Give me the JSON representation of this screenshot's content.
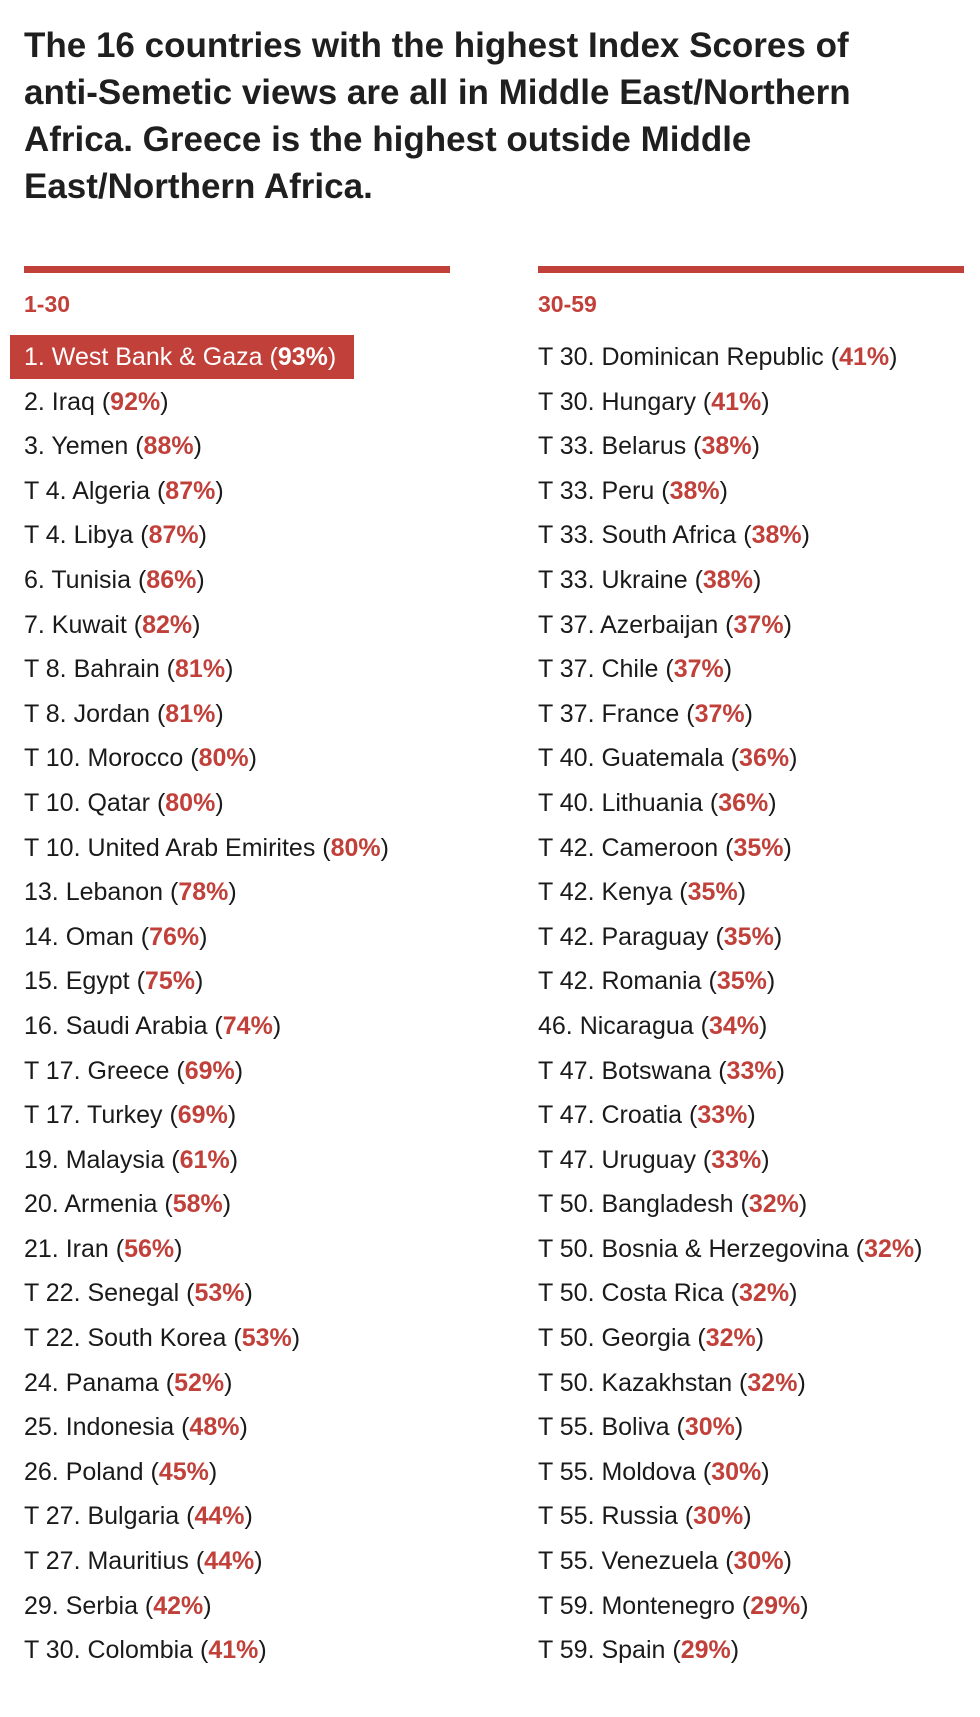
{
  "title": "The 16 countries with the highest Index Scores of anti-Semetic views are all in Middle East/Northern Africa. Greece is the highest outside Middle East/Northern Africa.",
  "colors": {
    "accent": "#c1403a",
    "text": "#1a1a1a",
    "background": "#ffffff"
  },
  "columns": [
    {
      "heading": "1-30",
      "items": [
        {
          "rank": "1. ",
          "country": "West Bank & Gaza",
          "pct": "93%",
          "highlight": true
        },
        {
          "rank": "2. ",
          "country": "Iraq",
          "pct": "92%"
        },
        {
          "rank": "3. ",
          "country": "Yemen",
          "pct": "88%"
        },
        {
          "rank": "T 4. ",
          "country": "Algeria",
          "pct": "87%"
        },
        {
          "rank": "T 4. ",
          "country": "Libya",
          "pct": "87%"
        },
        {
          "rank": "6. ",
          "country": "Tunisia",
          "pct": "86%"
        },
        {
          "rank": "7. ",
          "country": "Kuwait",
          "pct": "82%"
        },
        {
          "rank": "T 8. ",
          "country": "Bahrain",
          "pct": "81%"
        },
        {
          "rank": "T 8. ",
          "country": "Jordan",
          "pct": "81%"
        },
        {
          "rank": "T 10. ",
          "country": "Morocco",
          "pct": "80%"
        },
        {
          "rank": "T 10. ",
          "country": "Qatar",
          "pct": "80%"
        },
        {
          "rank": "T 10. ",
          "country": "United Arab Emirites",
          "pct": "80%"
        },
        {
          "rank": "13. ",
          "country": "Lebanon",
          "pct": "78%"
        },
        {
          "rank": "14. ",
          "country": "Oman",
          "pct": "76%"
        },
        {
          "rank": "15. ",
          "country": "Egypt",
          "pct": "75%"
        },
        {
          "rank": "16. ",
          "country": "Saudi Arabia",
          "pct": "74%"
        },
        {
          "rank": "T 17. ",
          "country": "Greece",
          "pct": "69%"
        },
        {
          "rank": "T 17. ",
          "country": "Turkey",
          "pct": "69%"
        },
        {
          "rank": "19. ",
          "country": "Malaysia",
          "pct": "61%"
        },
        {
          "rank": "20. ",
          "country": "Armenia",
          "pct": "58%"
        },
        {
          "rank": "21. ",
          "country": "Iran",
          "pct": "56%"
        },
        {
          "rank": "T 22. ",
          "country": "Senegal",
          "pct": "53%"
        },
        {
          "rank": "T 22. ",
          "country": "South Korea",
          "pct": "53%"
        },
        {
          "rank": "24. ",
          "country": "Panama",
          "pct": "52%"
        },
        {
          "rank": "25. ",
          "country": "Indonesia",
          "pct": "48%"
        },
        {
          "rank": "26. ",
          "country": "Poland",
          "pct": "45%"
        },
        {
          "rank": "T 27. ",
          "country": "Bulgaria",
          "pct": "44%"
        },
        {
          "rank": "T 27. ",
          "country": "Mauritius",
          "pct": "44%"
        },
        {
          "rank": "29. ",
          "country": "Serbia",
          "pct": "42%"
        },
        {
          "rank": "T 30. ",
          "country": "Colombia",
          "pct": "41%"
        }
      ]
    },
    {
      "heading": "30-59",
      "items": [
        {
          "rank": "T 30. ",
          "country": "Dominican Republic",
          "pct": "41%"
        },
        {
          "rank": "T 30. ",
          "country": "Hungary",
          "pct": "41%"
        },
        {
          "rank": "T 33. ",
          "country": "Belarus",
          "pct": "38%"
        },
        {
          "rank": "T 33. ",
          "country": "Peru",
          "pct": "38%"
        },
        {
          "rank": "T 33. ",
          "country": "South Africa",
          "pct": "38%"
        },
        {
          "rank": "T 33. ",
          "country": "Ukraine",
          "pct": "38%"
        },
        {
          "rank": "T 37. ",
          "country": "Azerbaijan",
          "pct": "37%"
        },
        {
          "rank": "T 37. ",
          "country": "Chile",
          "pct": "37%"
        },
        {
          "rank": "T 37. ",
          "country": "France",
          "pct": "37%"
        },
        {
          "rank": "T 40. ",
          "country": "Guatemala",
          "pct": "36%"
        },
        {
          "rank": "T 40. ",
          "country": "Lithuania",
          "pct": "36%"
        },
        {
          "rank": "T 42. ",
          "country": "Cameroon",
          "pct": "35%"
        },
        {
          "rank": "T 42. ",
          "country": "Kenya",
          "pct": "35%"
        },
        {
          "rank": "T 42. ",
          "country": "Paraguay",
          "pct": "35%"
        },
        {
          "rank": "T 42. ",
          "country": "Romania",
          "pct": "35%"
        },
        {
          "rank": "46. ",
          "country": "Nicaragua",
          "pct": "34%"
        },
        {
          "rank": "T 47. ",
          "country": "Botswana",
          "pct": "33%"
        },
        {
          "rank": "T 47. ",
          "country": "Croatia",
          "pct": "33%"
        },
        {
          "rank": "T 47. ",
          "country": "Uruguay",
          "pct": "33%"
        },
        {
          "rank": "T 50. ",
          "country": "Bangladesh",
          "pct": "32%"
        },
        {
          "rank": "T 50. ",
          "country": "Bosnia & Herzegovina",
          "pct": "32%"
        },
        {
          "rank": "T 50. ",
          "country": "Costa Rica",
          "pct": "32%"
        },
        {
          "rank": "T 50. ",
          "country": "Georgia",
          "pct": "32%"
        },
        {
          "rank": "T 50. ",
          "country": "Kazakhstan",
          "pct": "32%"
        },
        {
          "rank": "T 55. ",
          "country": "Boliva",
          "pct": "30%"
        },
        {
          "rank": "T 55. ",
          "country": "Moldova",
          "pct": "30%"
        },
        {
          "rank": "T 55. ",
          "country": "Russia",
          "pct": "30%"
        },
        {
          "rank": "T 55. ",
          "country": "Venezuela",
          "pct": "30%"
        },
        {
          "rank": "T 59. ",
          "country": "Montenegro",
          "pct": "29%"
        },
        {
          "rank": "T 59. ",
          "country": "Spain",
          "pct": "29%"
        }
      ]
    }
  ]
}
